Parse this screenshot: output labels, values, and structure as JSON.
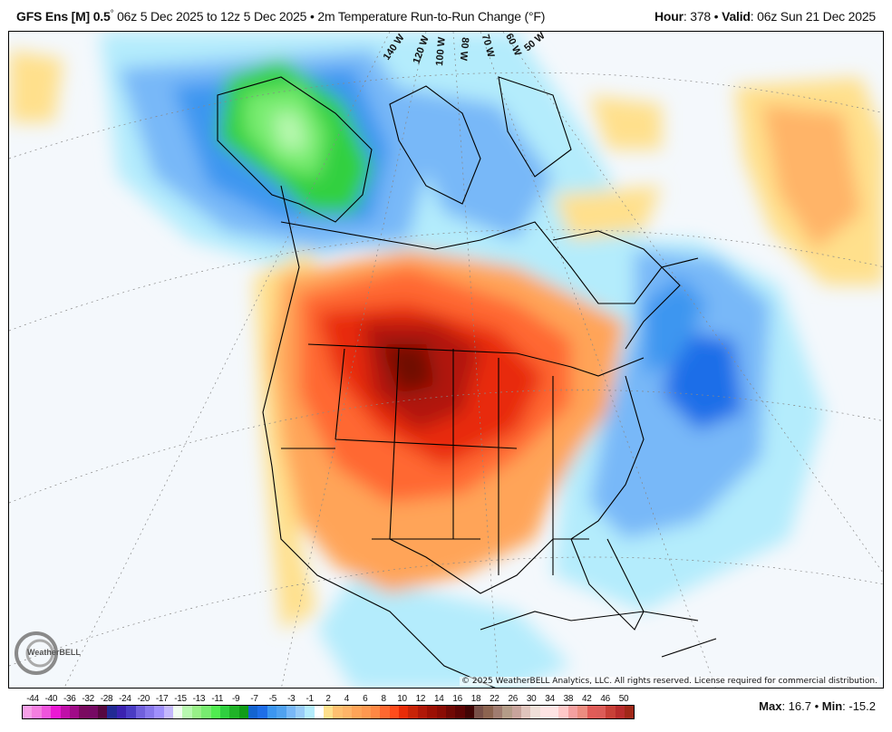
{
  "header": {
    "model": "GFS Ens [M] 0.5",
    "degree": "°",
    "run_range": " 06z 5 Dec 2025 to 12z 5 Dec 2025 • 2m Temperature Run-to-Run Change (°F)",
    "hour_label": "Hour",
    "hour_value": ": 378 • ",
    "valid_label": "Valid",
    "valid_value": ": 06z Sun 21 Dec 2025"
  },
  "map": {
    "longitude_labels": [
      "140 W",
      "120 W",
      "100 W",
      "80 W",
      "70 W",
      "60 W",
      "50 W"
    ],
    "logo_text": "WeatherBELL",
    "copyright": "© 2025 WeatherBELL Analytics, LLC. All rights reserved. License required for commercial distribution."
  },
  "legend": {
    "labels": [
      "-44",
      "-40",
      "-36",
      "-32",
      "-28",
      "-24",
      "-20",
      "-17",
      "-15",
      "-13",
      "-11",
      "-9",
      "-7",
      "-5",
      "-3",
      "-1",
      "2",
      "4",
      "6",
      "8",
      "10",
      "12",
      "14",
      "16",
      "18",
      "22",
      "26",
      "30",
      "34",
      "38",
      "42",
      "46",
      "50"
    ],
    "colors": [
      "#f7a0e8",
      "#f47fe0",
      "#ef55dc",
      "#ec18d4",
      "#c010a8",
      "#a00c88",
      "#7a0a60",
      "#760a64",
      "#560840",
      "#222a94",
      "#3b22b0",
      "#4a3cc4",
      "#7060dc",
      "#8878ec",
      "#a090fc",
      "#c4b8fc",
      "#f0fcf0",
      "#b8f8b0",
      "#98f088",
      "#78ec70",
      "#50ec50",
      "#30d040",
      "#20b428",
      "#109c18",
      "#1464d0",
      "#1e6ee8",
      "#3c96f0",
      "#50a2f0",
      "#78b8f8",
      "#98ccf8",
      "#b4ecfc",
      "#ffffff",
      "#ffe08c",
      "#ffc070",
      "#ffb468",
      "#ffa458",
      "#ff9850",
      "#ff8844",
      "#ff6830",
      "#ff4c1c",
      "#e82c08",
      "#c82408",
      "#b01808",
      "#9c1004",
      "#8a0c04",
      "#700804",
      "#5c0404",
      "#400404",
      "#785048",
      "#8c6450",
      "#a07c70",
      "#b49c88",
      "#c8a49c",
      "#e0c4bc",
      "#f0e0d8",
      "#ffe4e4",
      "#ffe4e4",
      "#ffc8c8",
      "#f4a0a0",
      "#ec8c80",
      "#e05c58",
      "#dc5c58",
      "#c84038",
      "#b82c2c",
      "#a02818"
    ]
  },
  "stats": {
    "max_label": "Max",
    "max_value": ": 16.7 • ",
    "min_label": "Min",
    "min_value": ": -15.2"
  }
}
